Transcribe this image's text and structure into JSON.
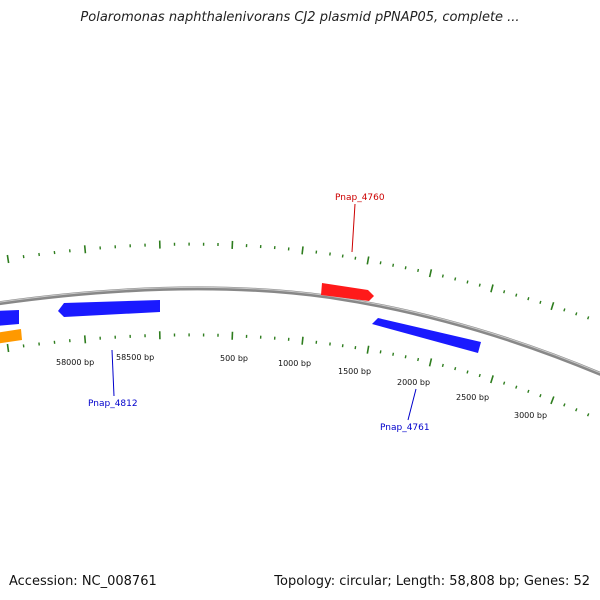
{
  "header": {
    "title": "Polaromonas naphthalenivorans CJ2 plasmid pPNAP05, complete ..."
  },
  "footer": {
    "accession": "Accession: NC_008761",
    "summary": "Topology: circular; Length: 58,808 bp; Genes: 52"
  },
  "colors": {
    "backbone": "#888888",
    "tick": "#2e7d1e",
    "forward_gene": "#ff1a1a",
    "reverse_gene": "#1a1aff",
    "other_gene": "#ff9900",
    "forward_label": "#cc0000",
    "reverse_label": "#0000cc"
  },
  "tick_labels": [
    {
      "text": "58000 bp"
    },
    {
      "text": "58500 bp"
    },
    {
      "text": "500 bp"
    },
    {
      "text": "1000 bp"
    },
    {
      "text": "1500 bp"
    },
    {
      "text": "2000 bp"
    },
    {
      "text": "2500 bp"
    },
    {
      "text": "3000 bp"
    }
  ],
  "genes": [
    {
      "label": "Pnap_4760",
      "strand": "forward"
    },
    {
      "label": "Pnap_4812",
      "strand": "reverse"
    },
    {
      "label": "Pnap_4761",
      "strand": "reverse"
    }
  ]
}
